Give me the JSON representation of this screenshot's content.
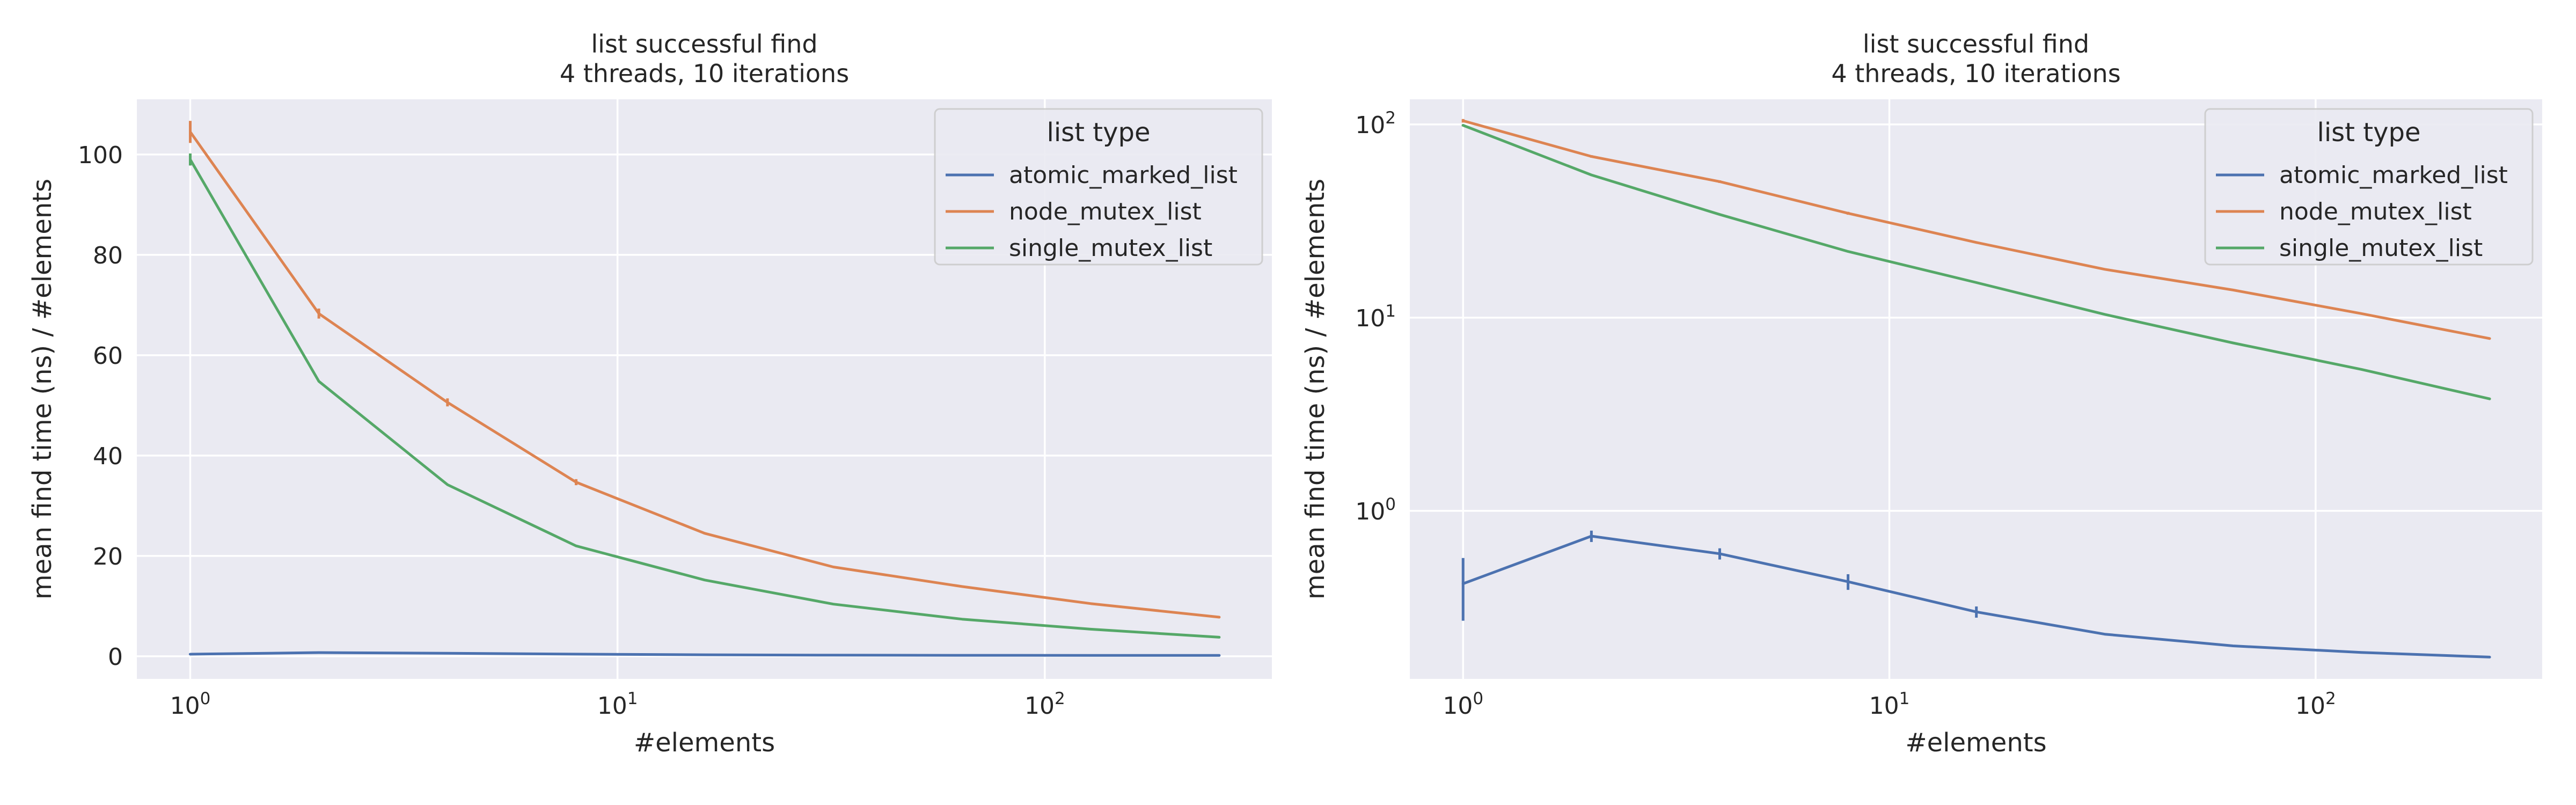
{
  "colors": {
    "background": "#ffffff",
    "axes_face": "#eaeaf2",
    "grid": "#ffffff",
    "text": "#262626",
    "legend_face": "#eaeaf2",
    "legend_edge": "#cccccc"
  },
  "chart_data": [
    {
      "type": "line",
      "title": [
        "list successful find",
        "4 threads, 10 iterations"
      ],
      "xlabel": "#elements",
      "ylabel": "mean find time (ns) / #elements",
      "xscale": "log",
      "yscale": "linear",
      "xlim": [
        0.75,
        340
      ],
      "ylim": [
        -4.5,
        111
      ],
      "xticks": [
        {
          "value": 1,
          "base": "10",
          "exp": "0"
        },
        {
          "value": 10,
          "base": "10",
          "exp": "1"
        },
        {
          "value": 100,
          "base": "10",
          "exp": "2"
        }
      ],
      "yticks": [
        {
          "value": 0,
          "label": "0"
        },
        {
          "value": 20,
          "label": "20"
        },
        {
          "value": 40,
          "label": "40"
        },
        {
          "value": 60,
          "label": "60"
        },
        {
          "value": 80,
          "label": "80"
        },
        {
          "value": 100,
          "label": "100"
        }
      ],
      "grid": true,
      "legend": {
        "title": "list type",
        "position": "top-right"
      },
      "x": [
        1,
        2,
        4,
        8,
        16,
        32,
        64,
        128,
        256
      ],
      "series": [
        {
          "name": "atomic_marked_list",
          "color": "#4c72b0",
          "values": [
            0.42,
            0.74,
            0.6,
            0.43,
            0.3,
            0.23,
            0.2,
            0.185,
            0.175
          ],
          "error": [
            0.15,
            0.05,
            0.04,
            0.04,
            0.02,
            0,
            0,
            0,
            0
          ]
        },
        {
          "name": "node_mutex_list",
          "color": "#dd8452",
          "values": [
            104.5,
            68.3,
            50.6,
            34.7,
            24.5,
            17.8,
            13.9,
            10.5,
            7.8
          ],
          "error": [
            2.2,
            1.0,
            0.8,
            0.6,
            0.2,
            0,
            0,
            0,
            0
          ]
        },
        {
          "name": "single_mutex_list",
          "color": "#55a868",
          "values": [
            99.0,
            54.8,
            34.2,
            22.0,
            15.2,
            10.4,
            7.4,
            5.4,
            3.8
          ],
          "error": [
            1.2,
            0,
            0,
            0,
            0,
            0,
            0,
            0,
            0
          ]
        }
      ]
    },
    {
      "type": "line",
      "title": [
        "list successful find",
        "4 threads, 10 iterations"
      ],
      "xlabel": "#elements",
      "ylabel": "mean find time (ns) / #elements",
      "xscale": "log",
      "yscale": "log",
      "xlim": [
        0.75,
        340
      ],
      "ylim": [
        0.135,
        135
      ],
      "xticks": [
        {
          "value": 1,
          "base": "10",
          "exp": "0"
        },
        {
          "value": 10,
          "base": "10",
          "exp": "1"
        },
        {
          "value": 100,
          "base": "10",
          "exp": "2"
        }
      ],
      "yticks": [
        {
          "value": 1,
          "base": "10",
          "exp": "0"
        },
        {
          "value": 10,
          "base": "10",
          "exp": "1"
        },
        {
          "value": 100,
          "base": "10",
          "exp": "2"
        }
      ],
      "grid": true,
      "legend": {
        "title": "list type",
        "position": "top-right"
      },
      "x": [
        1,
        2,
        4,
        8,
        16,
        32,
        64,
        128,
        256
      ],
      "series": [
        {
          "name": "atomic_marked_list",
          "color": "#4c72b0",
          "values": [
            0.42,
            0.74,
            0.6,
            0.43,
            0.3,
            0.23,
            0.2,
            0.185,
            0.175
          ],
          "error": [
            0.15,
            0.05,
            0.04,
            0.04,
            0.02,
            0,
            0,
            0,
            0
          ]
        },
        {
          "name": "node_mutex_list",
          "color": "#dd8452",
          "values": [
            104.5,
            68.3,
            50.6,
            34.7,
            24.5,
            17.8,
            13.9,
            10.5,
            7.8
          ],
          "error": [
            2.2,
            1.0,
            0.8,
            0.6,
            0.2,
            0,
            0,
            0,
            0
          ]
        },
        {
          "name": "single_mutex_list",
          "color": "#55a868",
          "values": [
            99.0,
            54.8,
            34.2,
            22.0,
            15.2,
            10.4,
            7.4,
            5.4,
            3.8
          ],
          "error": [
            1.2,
            0,
            0,
            0,
            0,
            0,
            0,
            0,
            0
          ]
        }
      ]
    }
  ]
}
